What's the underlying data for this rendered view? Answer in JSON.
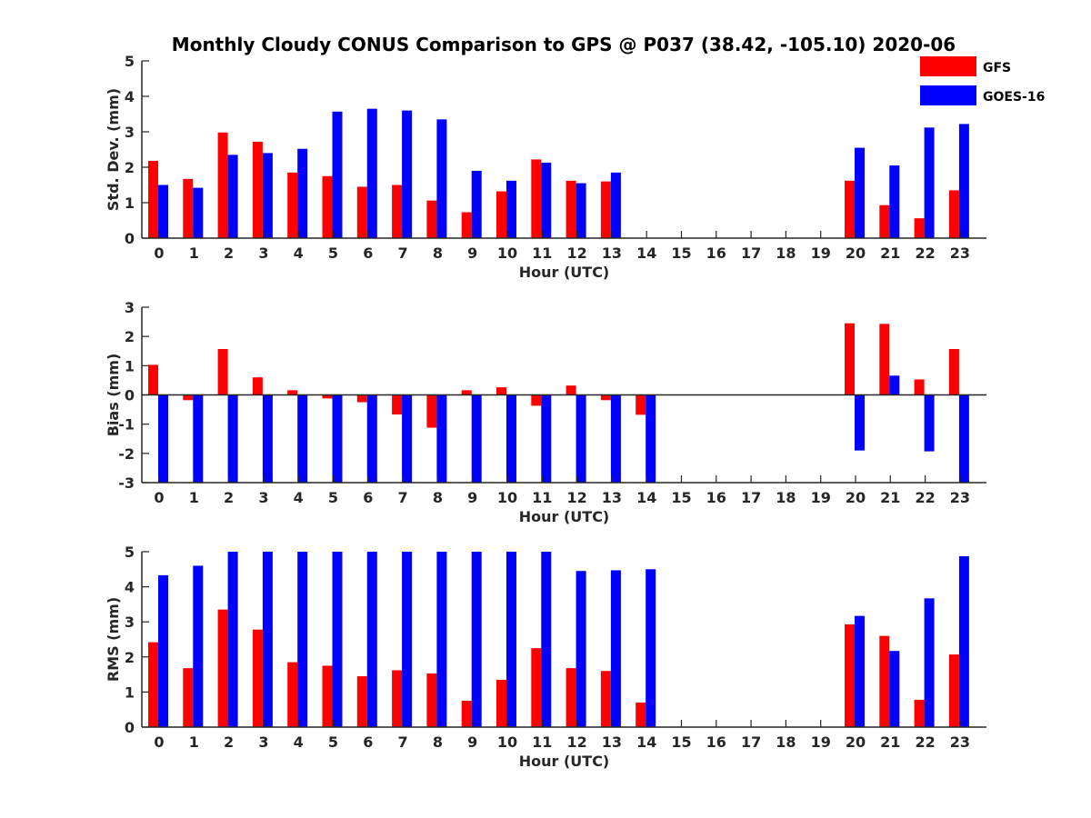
{
  "title": "Monthly Cloudy CONUS Comparison to GPS @ P037 (38.42, -105.10) 2020-06",
  "legend": [
    {
      "name": "GFS",
      "color": "#ff0000"
    },
    {
      "name": "GOES-16",
      "color": "#0000ff"
    }
  ],
  "chart_data": [
    {
      "type": "bar",
      "id": "stddev",
      "ylabel": "Std. Dev. (mm)",
      "xlabel": "Hour (UTC)",
      "ylim": [
        0,
        5
      ],
      "yticks": [
        0,
        1,
        2,
        3,
        4,
        5
      ],
      "categories": [
        "0",
        "1",
        "2",
        "3",
        "4",
        "5",
        "6",
        "7",
        "8",
        "9",
        "10",
        "11",
        "12",
        "13",
        "14",
        "15",
        "16",
        "17",
        "18",
        "19",
        "20",
        "21",
        "22",
        "23"
      ],
      "series": [
        {
          "name": "GFS",
          "color": "#ff0000",
          "values": [
            2.18,
            1.67,
            2.98,
            2.72,
            1.85,
            1.75,
            1.45,
            1.5,
            1.06,
            0.73,
            1.32,
            2.22,
            1.62,
            1.6,
            null,
            null,
            null,
            null,
            null,
            null,
            1.62,
            0.93,
            0.56,
            1.35
          ]
        },
        {
          "name": "GOES-16",
          "color": "#0000ff",
          "values": [
            1.5,
            1.42,
            2.35,
            2.4,
            2.52,
            3.57,
            3.65,
            3.6,
            3.35,
            1.9,
            1.62,
            2.13,
            1.55,
            1.85,
            null,
            null,
            null,
            null,
            null,
            null,
            2.55,
            2.05,
            3.12,
            3.22
          ]
        }
      ]
    },
    {
      "type": "bar",
      "id": "bias",
      "ylabel": "Bias (mm)",
      "xlabel": "Hour (UTC)",
      "ylim": [
        -3,
        3
      ],
      "yticks": [
        -3,
        -2,
        -1,
        0,
        1,
        2,
        3
      ],
      "categories": [
        "0",
        "1",
        "2",
        "3",
        "4",
        "5",
        "6",
        "7",
        "8",
        "9",
        "10",
        "11",
        "12",
        "13",
        "14",
        "15",
        "16",
        "17",
        "18",
        "19",
        "20",
        "21",
        "22",
        "23"
      ],
      "series": [
        {
          "name": "GFS",
          "color": "#ff0000",
          "values": [
            1.03,
            -0.18,
            1.57,
            0.6,
            0.16,
            -0.12,
            -0.25,
            -0.67,
            -1.12,
            0.16,
            0.26,
            -0.37,
            0.32,
            -0.18,
            -0.68,
            null,
            null,
            null,
            null,
            null,
            2.45,
            2.43,
            0.53,
            1.57
          ]
        },
        {
          "name": "GOES-16",
          "color": "#0000ff",
          "values": [
            -3.0,
            -3.0,
            -3.0,
            -3.0,
            -3.0,
            -3.0,
            -3.0,
            -3.0,
            -3.0,
            -3.0,
            -3.0,
            -3.0,
            -3.0,
            -3.0,
            -3.0,
            null,
            null,
            null,
            null,
            null,
            -1.9,
            0.66,
            -1.93,
            -3.0
          ]
        }
      ]
    },
    {
      "type": "bar",
      "id": "rms",
      "ylabel": "RMS (mm)",
      "xlabel": "Hour (UTC)",
      "ylim": [
        0,
        5
      ],
      "yticks": [
        0,
        1,
        2,
        3,
        4,
        5
      ],
      "categories": [
        "0",
        "1",
        "2",
        "3",
        "4",
        "5",
        "6",
        "7",
        "8",
        "9",
        "10",
        "11",
        "12",
        "13",
        "14",
        "15",
        "16",
        "17",
        "18",
        "19",
        "20",
        "21",
        "22",
        "23"
      ],
      "series": [
        {
          "name": "GFS",
          "color": "#ff0000",
          "values": [
            2.42,
            1.68,
            3.35,
            2.78,
            1.85,
            1.75,
            1.45,
            1.62,
            1.53,
            0.75,
            1.35,
            2.25,
            1.68,
            1.6,
            0.7,
            null,
            null,
            null,
            null,
            null,
            2.93,
            2.6,
            0.78,
            2.07
          ]
        },
        {
          "name": "GOES-16",
          "color": "#0000ff",
          "values": [
            4.33,
            4.6,
            5.0,
            5.0,
            5.0,
            5.0,
            5.0,
            5.0,
            5.0,
            5.0,
            5.0,
            5.0,
            4.45,
            4.47,
            4.5,
            null,
            null,
            null,
            null,
            null,
            3.17,
            2.17,
            3.67,
            4.87
          ]
        }
      ]
    }
  ]
}
